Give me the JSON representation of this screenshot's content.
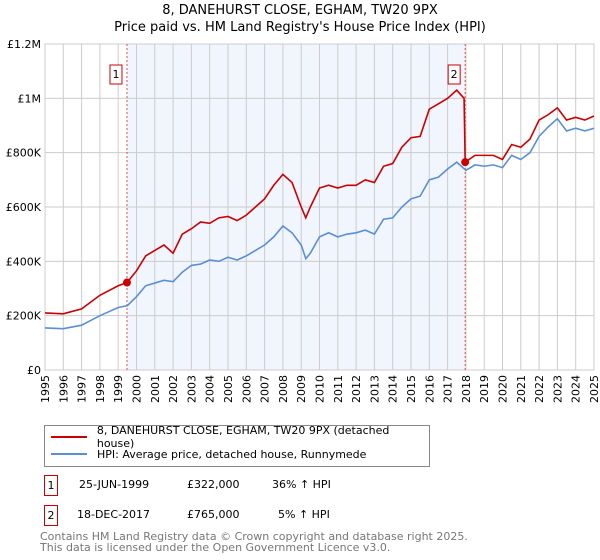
{
  "title": "8, DANEHURST CLOSE, EGHAM, TW20 9PX",
  "subtitle": "Price paid vs. HM Land Registry's House Price Index (HPI)",
  "chart_data": {
    "type": "line",
    "title": "8, DANEHURST CLOSE, EGHAM, TW20 9PX",
    "subtitle": "Price paid vs. HM Land Registry's House Price Index (HPI)",
    "xlim": [
      1995,
      2025
    ],
    "ylim": [
      0,
      1200000
    ],
    "grid": true,
    "yticks": [
      {
        "v": 0,
        "label": "£0"
      },
      {
        "v": 200000,
        "label": "£200K"
      },
      {
        "v": 400000,
        "label": "£400K"
      },
      {
        "v": 600000,
        "label": "£600K"
      },
      {
        "v": 800000,
        "label": "£800K"
      },
      {
        "v": 1000000,
        "label": "£1M"
      },
      {
        "v": 1200000,
        "label": "£1.2M"
      }
    ],
    "xticks": [
      "1995",
      "1996",
      "1997",
      "1998",
      "1999",
      "2000",
      "2001",
      "2002",
      "2003",
      "2004",
      "2005",
      "2006",
      "2007",
      "2008",
      "2009",
      "2010",
      "2011",
      "2012",
      "2013",
      "2014",
      "2015",
      "2016",
      "2017",
      "2018",
      "2019",
      "2020",
      "2021",
      "2022",
      "2023",
      "2024",
      "2025"
    ],
    "shaded_range": [
      1999.48,
      2017.96
    ],
    "series": [
      {
        "name": "8, DANEHURST CLOSE, EGHAM, TW20 9PX (detached house)",
        "color": "#cc0000",
        "x": [
          1995,
          1996,
          1997,
          1998,
          1999,
          1999.48,
          2000,
          2000.5,
          2001,
          2001.5,
          2002,
          2002.5,
          2003,
          2003.5,
          2004,
          2004.5,
          2005,
          2005.5,
          2006,
          2006.5,
          2007,
          2007.5,
          2008,
          2008.5,
          2009,
          2009.25,
          2009.5,
          2010,
          2010.5,
          2011,
          2011.5,
          2012,
          2012.5,
          2013,
          2013.5,
          2014,
          2014.5,
          2015,
          2015.5,
          2016,
          2016.5,
          2017,
          2017.5,
          2017.9,
          2017.96,
          2018.5,
          2019,
          2019.5,
          2020,
          2020.5,
          2021,
          2021.5,
          2022,
          2022.5,
          2023,
          2023.5,
          2024,
          2024.5,
          2025
        ],
        "y": [
          210000,
          207000,
          225000,
          275000,
          310000,
          322000,
          365000,
          420000,
          440000,
          460000,
          430000,
          500000,
          520000,
          545000,
          540000,
          560000,
          565000,
          550000,
          570000,
          600000,
          630000,
          680000,
          720000,
          690000,
          600000,
          560000,
          600000,
          670000,
          680000,
          670000,
          680000,
          680000,
          700000,
          690000,
          750000,
          760000,
          820000,
          855000,
          860000,
          960000,
          980000,
          1000000,
          1030000,
          1000000,
          765000,
          790000,
          790000,
          790000,
          775000,
          830000,
          820000,
          850000,
          920000,
          940000,
          965000,
          920000,
          930000,
          920000,
          935000
        ]
      },
      {
        "name": "HPI: Average price, detached house, Runnymede",
        "color": "#5b8fd4",
        "x": [
          1995,
          1996,
          1997,
          1998,
          1999,
          1999.5,
          2000,
          2000.5,
          2001,
          2001.5,
          2002,
          2002.5,
          2003,
          2003.5,
          2004,
          2004.5,
          2005,
          2005.5,
          2006,
          2006.5,
          2007,
          2007.5,
          2008,
          2008.5,
          2009,
          2009.25,
          2009.5,
          2010,
          2010.5,
          2011,
          2011.5,
          2012,
          2012.5,
          2013,
          2013.5,
          2014,
          2014.5,
          2015,
          2015.5,
          2016,
          2016.5,
          2017,
          2017.5,
          2018,
          2018.5,
          2019,
          2019.5,
          2020,
          2020.5,
          2021,
          2021.5,
          2022,
          2022.5,
          2023,
          2023.5,
          2024,
          2024.5,
          2025
        ],
        "y": [
          155000,
          152000,
          165000,
          200000,
          230000,
          237000,
          270000,
          310000,
          320000,
          330000,
          325000,
          360000,
          385000,
          390000,
          405000,
          400000,
          415000,
          405000,
          420000,
          440000,
          460000,
          490000,
          530000,
          505000,
          460000,
          410000,
          430000,
          490000,
          505000,
          490000,
          500000,
          505000,
          515000,
          500000,
          555000,
          560000,
          600000,
          630000,
          640000,
          700000,
          710000,
          740000,
          765000,
          735000,
          755000,
          750000,
          755000,
          745000,
          790000,
          775000,
          800000,
          860000,
          895000,
          925000,
          880000,
          890000,
          880000,
          890000
        ]
      }
    ],
    "sales": [
      {
        "label": "1",
        "x": 1999.48,
        "y": 322000
      },
      {
        "label": "2",
        "x": 2017.96,
        "y": 765000
      }
    ],
    "legend_position": "below"
  },
  "legend": [
    {
      "label": "8, DANEHURST CLOSE, EGHAM, TW20 9PX (detached house)",
      "color": "#cc0000"
    },
    {
      "label": "HPI: Average price, detached house, Runnymede",
      "color": "#5b8fd4"
    }
  ],
  "transactions": [
    {
      "num": "1",
      "date": "25-JUN-1999",
      "price": "£322,000",
      "hpi": "36% ↑ HPI"
    },
    {
      "num": "2",
      "date": "18-DEC-2017",
      "price": "£765,000",
      "hpi": "5% ↑ HPI"
    }
  ],
  "footer": [
    "Contains HM Land Registry data © Crown copyright and database right 2025.",
    "This data is licensed under the Open Government Licence v3.0."
  ]
}
